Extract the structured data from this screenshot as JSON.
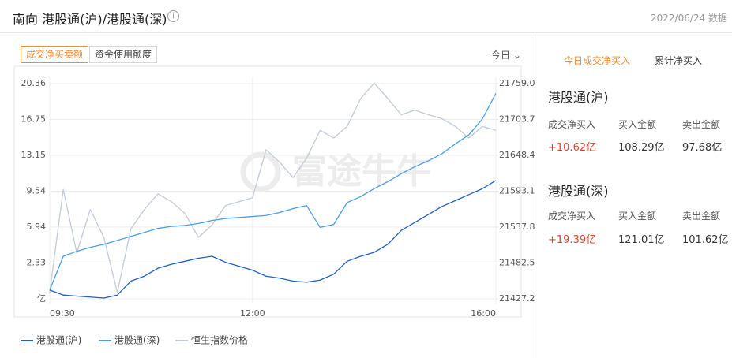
{
  "header": {
    "title": "南向 港股通(沪)/港股通(深)",
    "info": "i",
    "date": "2022/06/24 数据"
  },
  "buttons": [
    "成交净买卖额",
    "资金使用额度"
  ],
  "dropdown": "今日 ⌄",
  "watermark": "富途牛牛",
  "chart_data": {
    "type": "line",
    "categories": [
      "09:30",
      null,
      null,
      null,
      null,
      null,
      null,
      null,
      null,
      null,
      null,
      null,
      null,
      null,
      null,
      "12:00",
      null,
      null,
      null,
      null,
      null,
      null,
      null,
      null,
      null,
      null,
      null,
      null,
      null,
      null,
      null,
      null,
      null,
      "16:00"
    ],
    "ylim": [
      -1.28,
      20.36
    ],
    "yticks": [
      {
        "value": -1.28,
        "label": "亿"
      },
      2.33,
      5.94,
      9.54,
      13.15,
      16.75,
      20.36
    ],
    "y2lim": [
      21427.2,
      21759.0
    ],
    "y2ticks": [
      21427.2,
      21482.5,
      21537.8,
      21593.1,
      21648.4,
      21703.7,
      {
        "value": 21759.0,
        "label": "21759.0"
      }
    ],
    "grid": true,
    "series": [
      {
        "name": "港股通(沪)",
        "color": "#1f5fc8",
        "values": [
          -0.4,
          -0.9,
          -1.0,
          -1.1,
          -1.2,
          -0.9,
          0.5,
          1.0,
          1.8,
          2.2,
          2.5,
          2.8,
          3.0,
          2.4,
          2.0,
          1.6,
          1.0,
          0.8,
          0.5,
          0.4,
          0.6,
          1.2,
          2.5,
          3.0,
          3.4,
          4.2,
          5.6,
          6.4,
          7.2,
          8.0,
          8.6,
          9.2,
          9.8,
          10.62
        ]
      },
      {
        "name": "港股通(深)",
        "color": "#4b9ee8",
        "values": [
          -0.4,
          3.0,
          3.5,
          3.9,
          4.2,
          4.6,
          5.0,
          5.4,
          5.8,
          6.0,
          6.1,
          6.3,
          6.6,
          6.8,
          6.9,
          7.0,
          7.1,
          7.4,
          7.8,
          8.1,
          5.9,
          6.2,
          8.4,
          9.0,
          9.8,
          10.5,
          11.3,
          12.0,
          12.6,
          13.3,
          14.3,
          15.2,
          16.8,
          19.39
        ]
      },
      {
        "name": "恒生指数价格",
        "color": "#c3cad8",
        "axis": "y2",
        "values": [
          21437,
          21596,
          21498,
          21565,
          21522,
          21437,
          21535,
          21565,
          21589,
          21577,
          21559,
          21522,
          21541,
          21571,
          21577,
          21583,
          21657,
          21638,
          21614,
          21644,
          21687,
          21675,
          21693,
          21736,
          21760,
          21736,
          21711,
          21718,
          21711,
          21705,
          21693,
          21675,
          21693,
          21687
        ]
      }
    ]
  },
  "panel": {
    "tabs": [
      "今日成交净买入",
      "累计净买入"
    ],
    "sections": [
      {
        "title": "港股通(沪)",
        "labels": [
          "成交净买入",
          "买入金额",
          "卖出金额"
        ],
        "values": [
          "+10.62亿",
          "108.29亿",
          "97.68亿"
        ]
      },
      {
        "title": "港股通(深)",
        "labels": [
          "成交净买入",
          "买入金额",
          "卖出金额"
        ],
        "values": [
          "+19.39亿",
          "121.01亿",
          "101.62亿"
        ]
      }
    ]
  }
}
